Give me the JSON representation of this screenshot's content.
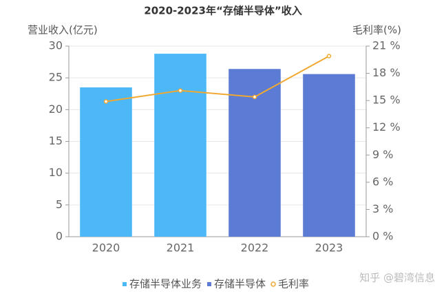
{
  "chart_data": {
    "type": "bar-line",
    "title": "2020-2023年“存储半导体”收入",
    "y_label": "营业收入(亿元)",
    "y2_label": "毛利率(%)",
    "categories": [
      "2020",
      "2021",
      "2022",
      "2023"
    ],
    "series": [
      {
        "name": "存储半导体业务",
        "color": "#4db8f8",
        "type": "bar",
        "values": [
          23.5,
          28.8,
          null,
          null
        ]
      },
      {
        "name": "存储半导体",
        "color": "#5b7bd5",
        "type": "bar",
        "values": [
          null,
          null,
          26.4,
          25.6
        ]
      },
      {
        "name": "毛利率",
        "color": "#f0a830",
        "type": "line",
        "axis": "y2",
        "values": [
          14.9,
          16.1,
          15.4,
          19.9
        ]
      }
    ],
    "ylim": [
      0,
      30
    ],
    "yticks": [
      0,
      5,
      10,
      15,
      20,
      25,
      30
    ],
    "y2lim": [
      0,
      21
    ],
    "y2ticks": [
      {
        "value": 0,
        "label": "0 %"
      },
      {
        "value": 3,
        "label": "3 %"
      },
      {
        "value": 6,
        "label": "6 %"
      },
      {
        "value": 9,
        "label": "9 %"
      },
      {
        "value": 12,
        "label": "12 %"
      },
      {
        "value": 15,
        "label": "15 %"
      },
      {
        "value": 18,
        "label": "18 %"
      },
      {
        "value": 21,
        "label": "21 %"
      }
    ],
    "grid": true,
    "legend": "bottom",
    "watermark": "知乎 @碧湾信息"
  }
}
